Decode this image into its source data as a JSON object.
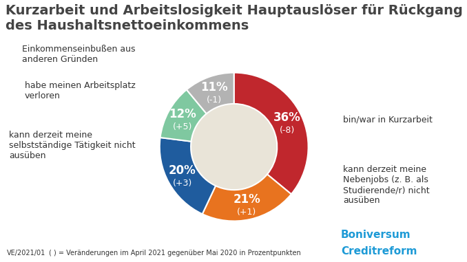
{
  "chart_data": {
    "type": "pie",
    "title": "Kurzarbeit und Arbeitslosigkeit Hauptauslöser für Rückgang des Haushaltsnettoeinkommens",
    "categories": [
      "bin/war in Kurzarbeit",
      "kann derzeit meine Nebenjobs (z. B. als Studierende/r) nicht ausüben",
      "kann derzeit meine selbstständige Tätigkeit nicht ausüben",
      "habe meinen Arbeitsplatz verloren",
      "Einkommenseinbußen aus anderen Gründen"
    ],
    "values": [
      36,
      21,
      20,
      12,
      11
    ],
    "value_labels": [
      "36%",
      "21%",
      "20%",
      "12%",
      "11%"
    ],
    "changes": [
      -8,
      1,
      3,
      5,
      -1
    ],
    "change_labels": [
      "(-8)",
      "(+1)",
      "(+3)",
      "(+5)",
      "(-1)"
    ],
    "colors": [
      "#c0272d",
      "#e8731f",
      "#1f5c9e",
      "#7fc8a0",
      "#b3b3b3"
    ],
    "data_labels": true,
    "footnote_code": "VE/2021/01",
    "footnote": "( ) = Veränderungen im April 2021 gegenüber Mai 2020 in Prozentpunkten",
    "logo": [
      "Boniversum",
      "Creditreform"
    ]
  }
}
